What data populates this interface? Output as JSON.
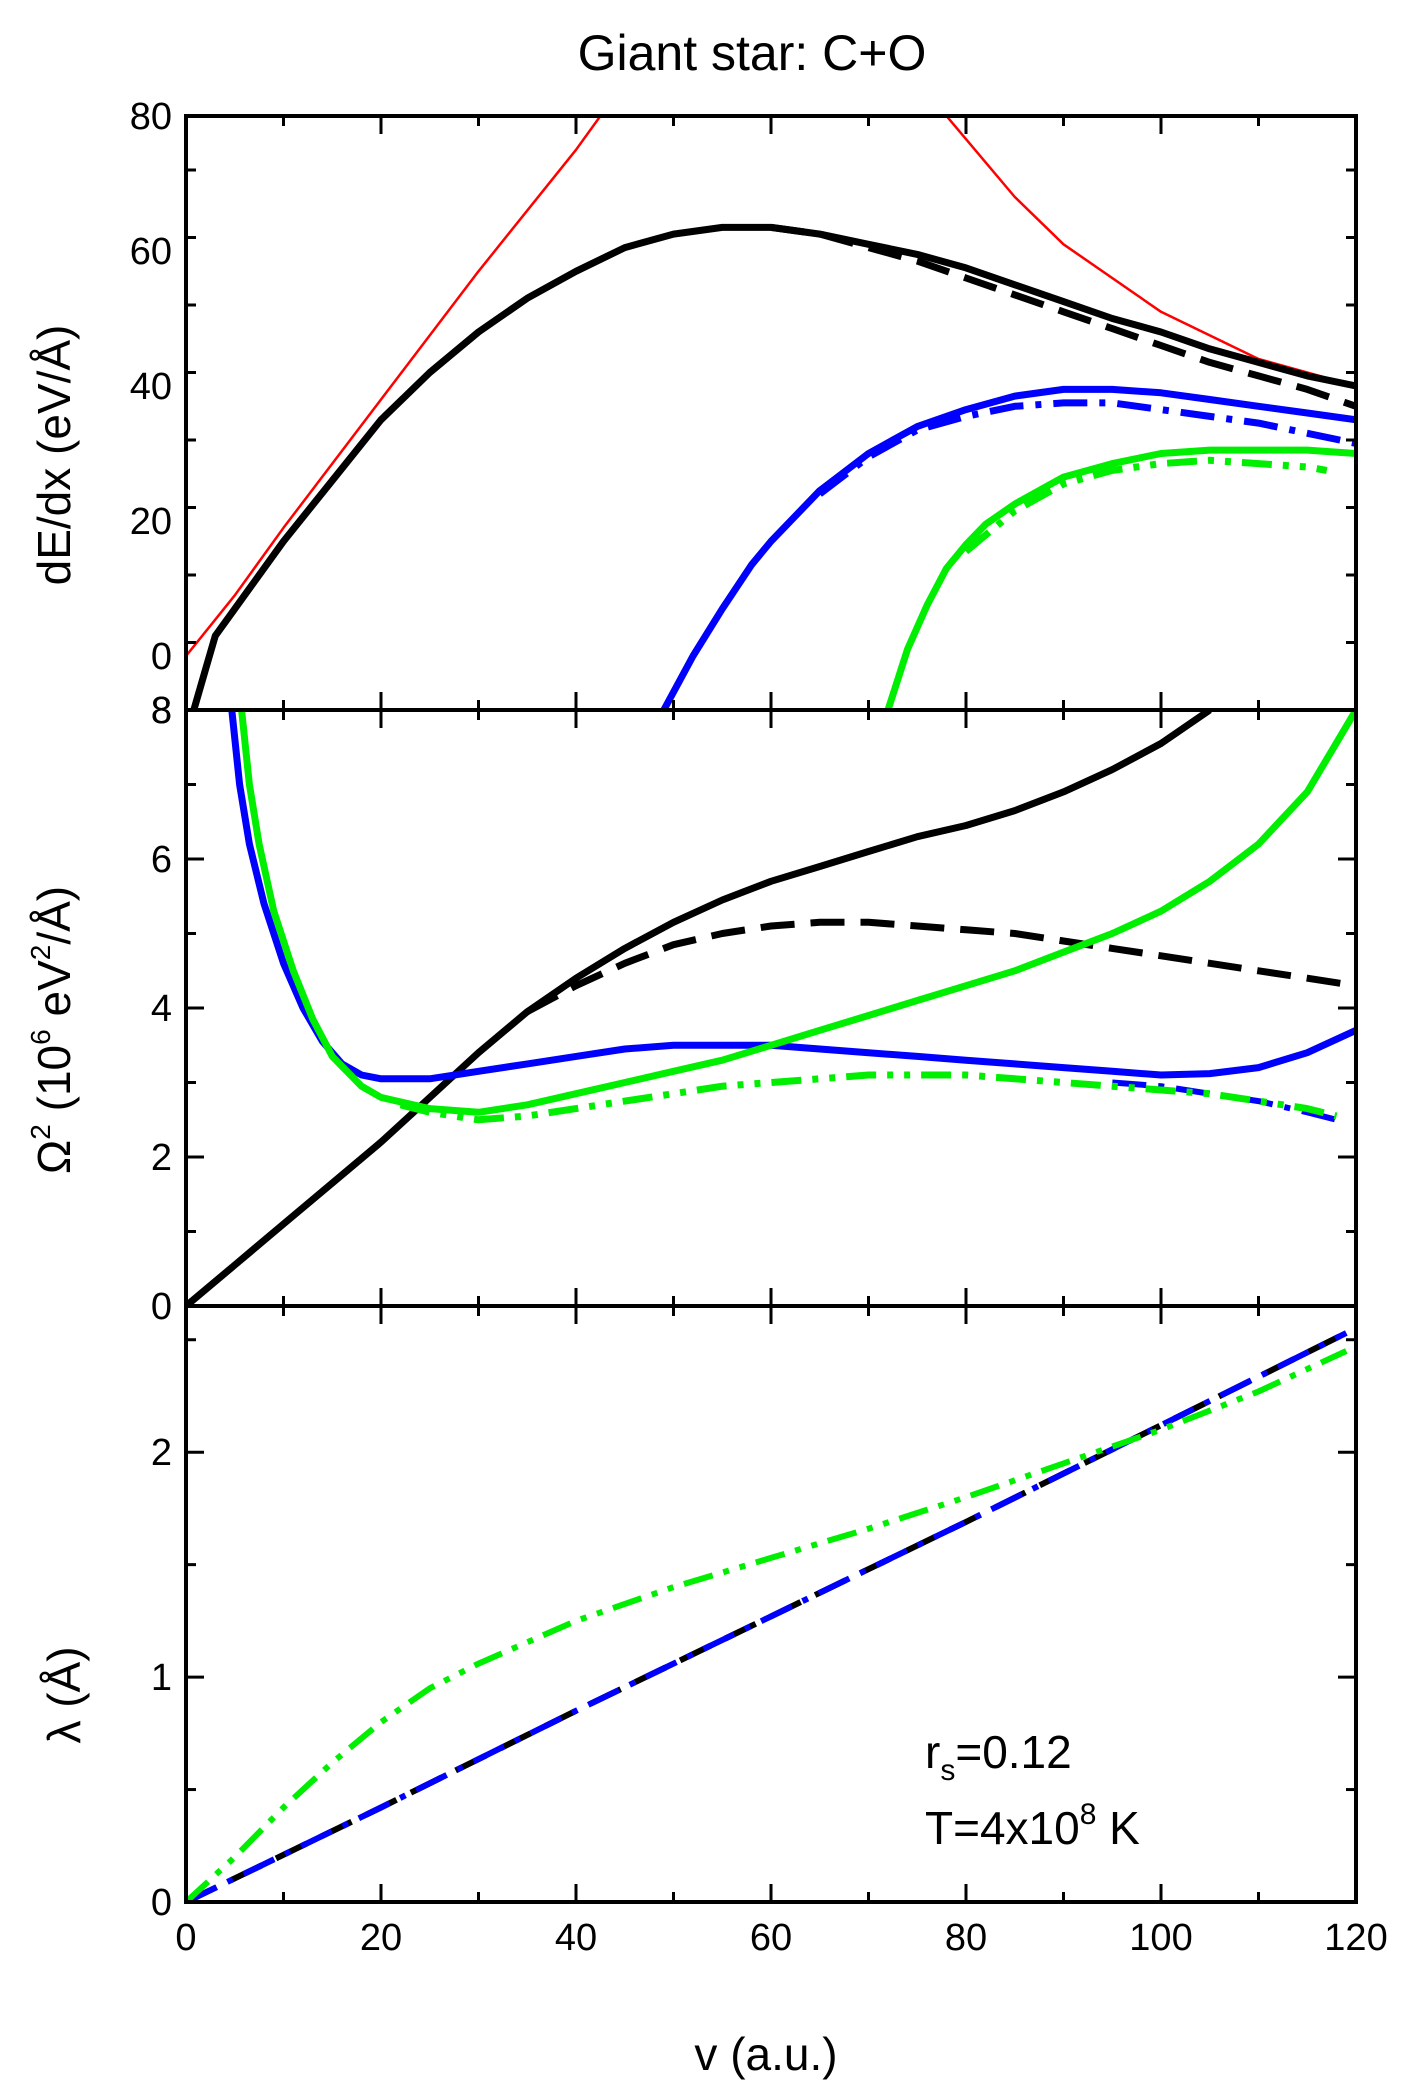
{
  "figure": {
    "title": "Giant star: C+O",
    "xlabel": "v (a.u.)",
    "annotation": {
      "rs_label": "r",
      "rs_sub": "s",
      "rs_value": "=0.12",
      "T_label": "T=4x10",
      "T_exp": "8",
      "T_unit": " K"
    }
  },
  "chart_data": [
    {
      "type": "line",
      "panel": "top",
      "ylabel": "dE/dx (eV/Å)",
      "xlim": [
        0,
        120
      ],
      "ylim": [
        -8,
        80
      ],
      "x_ticks": [
        0,
        20,
        40,
        60,
        80,
        100,
        120
      ],
      "y_ticks": [
        0,
        20,
        40,
        60,
        80
      ],
      "y_tick_labels": [
        "0",
        "20",
        "40",
        "60",
        "80"
      ],
      "bottom_edge_label": "8",
      "series": [
        {
          "name": "red-thin-low",
          "color": "#ff0000",
          "style": "solid",
          "width": 2.5,
          "x": [
            0,
            5,
            10,
            20,
            30,
            40,
            42.5
          ],
          "y": [
            0,
            9,
            19,
            38,
            57,
            75,
            80
          ]
        },
        {
          "name": "red-thin-high",
          "color": "#ff0000",
          "style": "solid",
          "width": 2.5,
          "x": [
            78,
            85,
            90,
            100,
            110,
            120
          ],
          "y": [
            80,
            68,
            61,
            51,
            44,
            40
          ]
        },
        {
          "name": "black-solid",
          "color": "#000000",
          "style": "solid",
          "width": 7,
          "x": [
            0.8,
            2,
            3,
            5,
            10,
            15,
            20,
            25,
            30,
            35,
            40,
            45,
            50,
            55,
            60,
            65,
            70,
            75,
            80,
            85,
            90,
            95,
            100,
            105,
            110,
            115,
            120
          ],
          "y": [
            -8,
            -2,
            3,
            7,
            17,
            26,
            35,
            42,
            48,
            53,
            57,
            60.5,
            62.5,
            63.5,
            63.5,
            62.5,
            61,
            59.5,
            57.5,
            55,
            52.5,
            50,
            48,
            45.5,
            43.5,
            41.5,
            40
          ]
        },
        {
          "name": "black-dashed",
          "color": "#000000",
          "style": "dashed",
          "width": 7,
          "x": [
            60,
            65,
            70,
            75,
            80,
            85,
            90,
            95,
            100,
            105,
            110,
            115,
            120
          ],
          "y": [
            63.5,
            62.5,
            60.5,
            58.5,
            56,
            53.5,
            51,
            48.5,
            46,
            43.5,
            41.5,
            39.5,
            37
          ]
        },
        {
          "name": "blue-solid",
          "color": "#0000ff",
          "style": "solid",
          "width": 7,
          "x": [
            49,
            52,
            55,
            58,
            60,
            65,
            70,
            75,
            80,
            85,
            90,
            95,
            100,
            105,
            110,
            115,
            120
          ],
          "y": [
            -8,
            0,
            7,
            13.5,
            17,
            24.5,
            30,
            34,
            36.5,
            38.5,
            39.5,
            39.5,
            39,
            38,
            37,
            36,
            35
          ]
        },
        {
          "name": "blue-dashdot",
          "color": "#0000ff",
          "style": "dashdot",
          "width": 7,
          "x": [
            65,
            70,
            75,
            80,
            85,
            90,
            95,
            100,
            105,
            110,
            115,
            120
          ],
          "y": [
            24,
            29.5,
            33.5,
            35.5,
            37,
            37.5,
            37.5,
            36.5,
            35.5,
            34.5,
            33,
            31.5
          ]
        },
        {
          "name": "green-solid",
          "color": "#00ee00",
          "style": "solid",
          "width": 7,
          "x": [
            72,
            74,
            76,
            78,
            80,
            82,
            85,
            90,
            95,
            100,
            105,
            110,
            115,
            120
          ],
          "y": [
            -8,
            1,
            7.5,
            13,
            16.5,
            19.5,
            22.5,
            26.5,
            28.5,
            30,
            30.5,
            30.5,
            30.5,
            30
          ]
        },
        {
          "name": "green-dashdotdot",
          "color": "#00ee00",
          "style": "dashdotdot",
          "width": 7,
          "x": [
            80,
            85,
            90,
            95,
            100,
            105,
            110,
            115,
            117
          ],
          "y": [
            15.5,
            21.5,
            25.5,
            27.5,
            28.5,
            29,
            28.5,
            28,
            27.5
          ]
        }
      ]
    },
    {
      "type": "line",
      "panel": "middle",
      "ylabel_main": "Ω",
      "ylabel_sup": "2",
      "ylabel_rest": " (10",
      "ylabel_sup2": "6",
      "ylabel_rest2": " eV",
      "ylabel_sup3": "2",
      "ylabel_rest3": "/Å)",
      "xlim": [
        0,
        120
      ],
      "ylim": [
        0,
        8
      ],
      "x_ticks": [
        0,
        20,
        40,
        60,
        80,
        100,
        120
      ],
      "y_ticks": [
        0,
        2,
        4,
        6,
        8
      ],
      "y_tick_labels": [
        "0",
        "2",
        "4",
        "6",
        "8"
      ],
      "series": [
        {
          "name": "black-solid",
          "color": "#000000",
          "style": "solid",
          "width": 7,
          "x": [
            0,
            5,
            10,
            15,
            20,
            25,
            30,
            35,
            40,
            45,
            50,
            55,
            60,
            65,
            70,
            75,
            80,
            85,
            90,
            95,
            100,
            105
          ],
          "y": [
            0,
            0.55,
            1.1,
            1.65,
            2.2,
            2.8,
            3.4,
            3.95,
            4.4,
            4.8,
            5.15,
            5.45,
            5.7,
            5.9,
            6.1,
            6.3,
            6.45,
            6.65,
            6.9,
            7.2,
            7.55,
            8
          ]
        },
        {
          "name": "black-dashed",
          "color": "#000000",
          "style": "dashed",
          "width": 7,
          "x": [
            35,
            40,
            45,
            50,
            55,
            60,
            65,
            70,
            75,
            80,
            85,
            90,
            95,
            100,
            105,
            110,
            115,
            120
          ],
          "y": [
            3.95,
            4.3,
            4.6,
            4.85,
            5.0,
            5.1,
            5.15,
            5.15,
            5.1,
            5.05,
            5.0,
            4.9,
            4.8,
            4.7,
            4.6,
            4.5,
            4.4,
            4.3
          ]
        },
        {
          "name": "blue-solid",
          "color": "#0000ff",
          "style": "solid",
          "width": 7,
          "x": [
            4.7,
            5.5,
            6.5,
            8,
            10,
            12,
            14,
            16,
            18,
            20,
            25,
            30,
            35,
            40,
            45,
            50,
            55,
            60,
            65,
            70,
            75,
            80,
            85,
            90,
            95,
            100,
            105,
            110,
            115,
            120
          ],
          "y": [
            8,
            7.0,
            6.2,
            5.4,
            4.6,
            4.0,
            3.55,
            3.25,
            3.1,
            3.05,
            3.05,
            3.15,
            3.25,
            3.35,
            3.45,
            3.5,
            3.5,
            3.5,
            3.45,
            3.4,
            3.35,
            3.3,
            3.25,
            3.2,
            3.15,
            3.1,
            3.12,
            3.2,
            3.4,
            3.7
          ]
        },
        {
          "name": "blue-dashdot",
          "color": "#0000ff",
          "style": "dashdot",
          "width": 6,
          "x": [
            95,
            100,
            105,
            110,
            115,
            118
          ],
          "y": [
            3.0,
            2.95,
            2.85,
            2.75,
            2.6,
            2.5
          ]
        },
        {
          "name": "green-solid",
          "color": "#00ee00",
          "style": "solid",
          "width": 7,
          "x": [
            5.7,
            6.5,
            7.5,
            9,
            11,
            13,
            15,
            18,
            20,
            25,
            30,
            35,
            40,
            45,
            50,
            55,
            60,
            65,
            70,
            75,
            80,
            85,
            90,
            95,
            100,
            105,
            110,
            115,
            120
          ],
          "y": [
            8,
            7.0,
            6.2,
            5.3,
            4.5,
            3.85,
            3.35,
            2.95,
            2.8,
            2.65,
            2.6,
            2.7,
            2.85,
            3.0,
            3.15,
            3.3,
            3.5,
            3.7,
            3.9,
            4.1,
            4.3,
            4.5,
            4.75,
            5.0,
            5.3,
            5.7,
            6.2,
            6.9,
            8.0
          ]
        },
        {
          "name": "green-dashdotdot",
          "color": "#00ee00",
          "style": "dashdotdot",
          "width": 7,
          "x": [
            22,
            25,
            30,
            35,
            40,
            45,
            50,
            55,
            60,
            65,
            70,
            75,
            80,
            85,
            90,
            95,
            100,
            105,
            110,
            115,
            118
          ],
          "y": [
            2.7,
            2.6,
            2.5,
            2.55,
            2.65,
            2.75,
            2.85,
            2.95,
            3.0,
            3.05,
            3.1,
            3.1,
            3.1,
            3.05,
            3.0,
            2.95,
            2.9,
            2.85,
            2.75,
            2.65,
            2.55
          ]
        }
      ]
    },
    {
      "type": "line",
      "panel": "bottom",
      "ylabel": "λ (Å)",
      "xlim": [
        0,
        120
      ],
      "ylim": [
        0,
        2.65
      ],
      "x_ticks": [
        0,
        20,
        40,
        60,
        80,
        100,
        120
      ],
      "x_tick_labels": [
        "0",
        "20",
        "40",
        "60",
        "80",
        "100",
        "120"
      ],
      "y_ticks": [
        0,
        1,
        2
      ],
      "y_tick_labels": [
        "0",
        "1",
        "2"
      ],
      "series": [
        {
          "name": "black-dashed",
          "color": "#000000",
          "style": "dashed",
          "width": 6,
          "x": [
            0,
            20,
            40,
            60,
            80,
            100,
            119
          ],
          "y": [
            0,
            0.42,
            0.85,
            1.27,
            1.69,
            2.12,
            2.53
          ]
        },
        {
          "name": "blue-dashdot",
          "color": "#0000ff",
          "style": "dashdot",
          "width": 6,
          "x": [
            0,
            20,
            40,
            60,
            80,
            100,
            119
          ],
          "y": [
            0,
            0.42,
            0.85,
            1.27,
            1.69,
            2.12,
            2.53
          ]
        },
        {
          "name": "green-dashdotdot",
          "color": "#00ee00",
          "style": "dashdotdot",
          "width": 6,
          "x": [
            0,
            5,
            10,
            15,
            20,
            25,
            30,
            40,
            50,
            60,
            70,
            80,
            90,
            100,
            110,
            119
          ],
          "y": [
            0,
            0.2,
            0.42,
            0.62,
            0.8,
            0.95,
            1.06,
            1.25,
            1.4,
            1.53,
            1.66,
            1.8,
            1.95,
            2.1,
            2.27,
            2.45
          ]
        }
      ]
    }
  ]
}
